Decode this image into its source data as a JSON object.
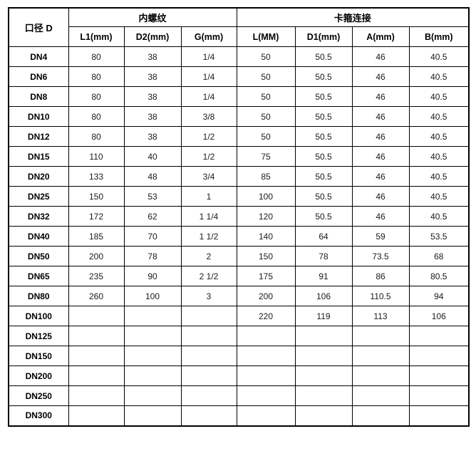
{
  "table": {
    "corner_header": "口径 D",
    "groups": [
      {
        "label": "内螺纹",
        "columns": [
          "L1(mm)",
          "D2(mm)",
          "G(mm)"
        ]
      },
      {
        "label": "卡箍连接",
        "columns": [
          "L(MM)",
          "D1(mm)",
          "A(mm)",
          "B(mm)"
        ]
      }
    ],
    "rows": [
      {
        "name": "DN4",
        "values": [
          "80",
          "38",
          "1/4",
          "50",
          "50.5",
          "46",
          "40.5"
        ]
      },
      {
        "name": "DN6",
        "values": [
          "80",
          "38",
          "1/4",
          "50",
          "50.5",
          "46",
          "40.5"
        ]
      },
      {
        "name": "DN8",
        "values": [
          "80",
          "38",
          "1/4",
          "50",
          "50.5",
          "46",
          "40.5"
        ]
      },
      {
        "name": "DN10",
        "values": [
          "80",
          "38",
          "3/8",
          "50",
          "50.5",
          "46",
          "40.5"
        ]
      },
      {
        "name": "DN12",
        "values": [
          "80",
          "38",
          "1/2",
          "50",
          "50.5",
          "46",
          "40.5"
        ]
      },
      {
        "name": "DN15",
        "values": [
          "110",
          "40",
          "1/2",
          "75",
          "50.5",
          "46",
          "40.5"
        ]
      },
      {
        "name": "DN20",
        "values": [
          "133",
          "48",
          "3/4",
          "85",
          "50.5",
          "46",
          "40.5"
        ]
      },
      {
        "name": "DN25",
        "values": [
          "150",
          "53",
          "1",
          "100",
          "50.5",
          "46",
          "40.5"
        ]
      },
      {
        "name": "DN32",
        "values": [
          "172",
          "62",
          "1 1/4",
          "120",
          "50.5",
          "46",
          "40.5"
        ]
      },
      {
        "name": "DN40",
        "values": [
          "185",
          "70",
          "1 1/2",
          "140",
          "64",
          "59",
          "53.5"
        ]
      },
      {
        "name": "DN50",
        "values": [
          "200",
          "78",
          "2",
          "150",
          "78",
          "73.5",
          "68"
        ]
      },
      {
        "name": "DN65",
        "values": [
          "235",
          "90",
          "2 1/2",
          "175",
          "91",
          "86",
          "80.5"
        ]
      },
      {
        "name": "DN80",
        "values": [
          "260",
          "100",
          "3",
          "200",
          "106",
          "110.5",
          "94"
        ]
      },
      {
        "name": "DN100",
        "values": [
          "",
          "",
          "",
          "220",
          "119",
          "113",
          "106"
        ]
      },
      {
        "name": "DN125",
        "values": [
          "",
          "",
          "",
          "",
          "",
          "",
          ""
        ]
      },
      {
        "name": "DN150",
        "values": [
          "",
          "",
          "",
          "",
          "",
          "",
          ""
        ]
      },
      {
        "name": "DN200",
        "values": [
          "",
          "",
          "",
          "",
          "",
          "",
          ""
        ]
      },
      {
        "name": "DN250",
        "values": [
          "",
          "",
          "",
          "",
          "",
          "",
          ""
        ]
      },
      {
        "name": "DN300",
        "values": [
          "",
          "",
          "",
          "",
          "",
          "",
          ""
        ]
      }
    ]
  }
}
